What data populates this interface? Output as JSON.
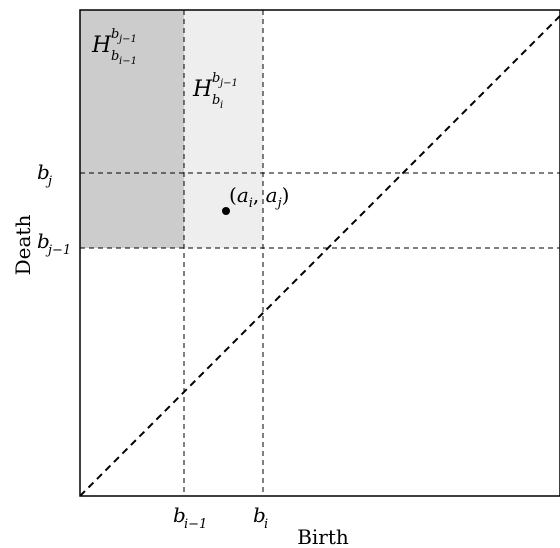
{
  "axes": {
    "x_label": "Birth",
    "y_label": "Death"
  },
  "ticks": {
    "x": [
      {
        "base": "b",
        "sub": "i−1"
      },
      {
        "base": "b",
        "sub": "i"
      }
    ],
    "y": [
      {
        "base": "b",
        "sub": "j"
      },
      {
        "base": "b",
        "sub": "j−1"
      }
    ]
  },
  "regions": {
    "dark": {
      "base": "H",
      "sup": "b",
      "sup_sub": "j−1",
      "sub": "b",
      "sub_sub": "i−1",
      "color": "#cccccc"
    },
    "light": {
      "base": "H",
      "sup": "b",
      "sup_sub": "j−1",
      "sub": "b",
      "sub_sub": "i",
      "color": "#eeeeee"
    }
  },
  "point": {
    "label_open": "(",
    "a1": "a",
    "a1_sub": "i",
    "comma": ", ",
    "a2": "a",
    "a2_sub": "j",
    "label_close": ")"
  }
}
